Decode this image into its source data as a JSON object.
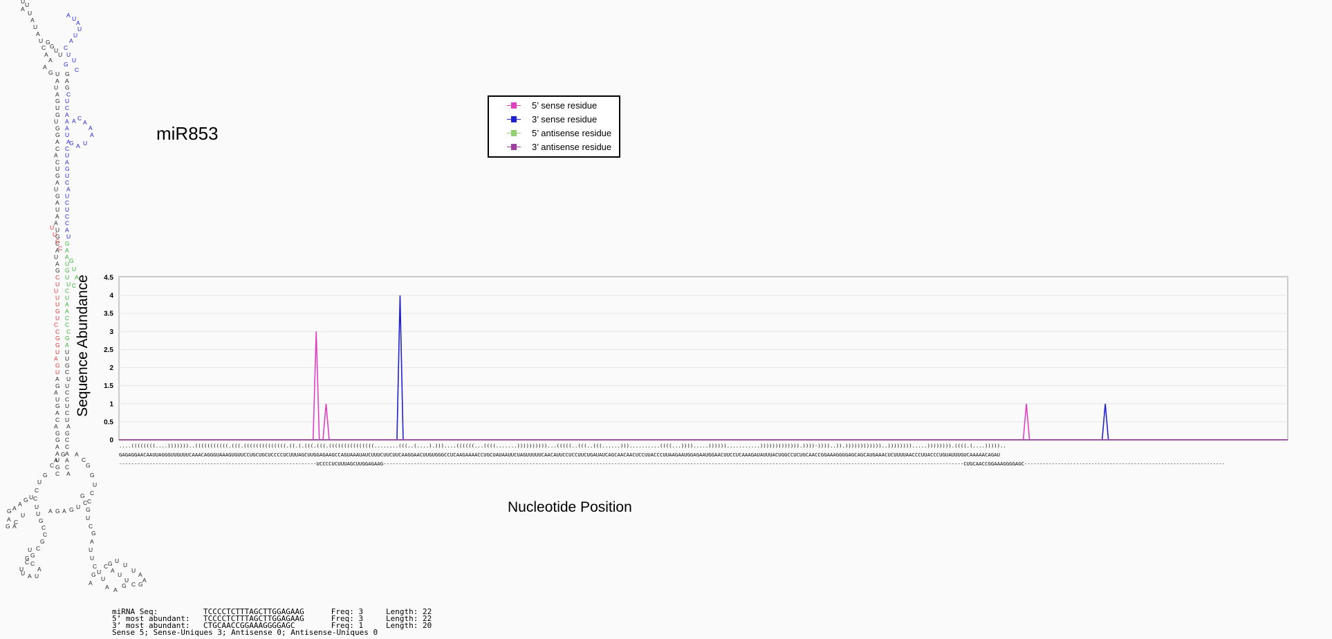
{
  "title": "miR853",
  "colors": {
    "sense5": "#e040c0",
    "sense3": "#2020d0",
    "antisense5": "#90d070",
    "antisense3": "#a040a0",
    "structure_black": "#222222",
    "structure_blue": "#2020d0",
    "structure_green": "#30b030",
    "structure_red": "#e03030"
  },
  "legend": [
    {
      "label": "5’ sense residue",
      "color_key": "sense5"
    },
    {
      "label": "3’ sense residue",
      "color_key": "sense3"
    },
    {
      "label": "5’ antisense residue",
      "color_key": "antisense5"
    },
    {
      "label": "3’ antisense residue",
      "color_key": "antisense3"
    }
  ],
  "chart_data": {
    "type": "line",
    "xlabel": "Nucleotide Position",
    "ylabel": "Sequence Abundance",
    "ylim": [
      0,
      4.5
    ],
    "yticks": [
      "0",
      "0.5",
      "1",
      "1.5",
      "2",
      "2.5",
      "3",
      "3.5",
      "4",
      "4.5"
    ],
    "xlim": [
      1,
      238
    ],
    "series": [
      {
        "name": "5’ sense residue",
        "color_key": "sense5",
        "peaks": [
          {
            "x": 41,
            "y": 3
          },
          {
            "x": 43,
            "y": 1
          },
          {
            "x": 185,
            "y": 1
          }
        ]
      },
      {
        "name": "3’ sense residue",
        "color_key": "sense3",
        "peaks": [
          {
            "x": 58,
            "y": 4
          },
          {
            "x": 201,
            "y": 1
          }
        ]
      },
      {
        "name": "5’ antisense residue",
        "color_key": "antisense5",
        "peaks": []
      },
      {
        "name": "3’ antisense residue",
        "color_key": "antisense3",
        "peaks": []
      }
    ],
    "legend_position": "top-center",
    "grid": true
  },
  "sequence": {
    "dotbracket": "....((((((((....)))))))..(((((((((((.(((.((((((((((((((.((.(.(((.(((.(((((((((((((((........(((..(....).)))....((((((...((((.......))))))))))...(((((..(((..(((......)))..........((((...)))).....))))))...........))))))))))))).))))-))))..)).))))))))))))..)))))))).....)))))))).((((.(....)))))..",
    "sequence": "GAGAGGAACAAUUAGGGUUGUUUCAAACAGGGUAAAGUGUUCCUGCUGCUCCCCUCUUUAGCUUGGAGAAGCCAGUAAAUAUCUUUCUUCUUCAAGGAACUUGUGGGCCUCAAGAAAACCUGCUAUAAUUCUAGUUUUUCAACAUUCCUCCUUCUGAUAUCAGCAACAACUCCUUACCCUUAAGAAUGGAGAAUGGAACUUCCUCAAAGAUAUUUACUGGCCUCUGCAACCGGAAAGGGGAGCAGCAUGAAACUCUUUUAACCCUUACCCUGUAUUUGUCAAAAACAGAU",
    "alignment": "-----------------------------------------------------------------UCCCCUCUUUAGCUUGGAGAAG-----------------------------------------------------------------------------------------------------------------------------------------------------------------------------------------------CUGCAACCGGAAAGGGGAGC------------------------------------------------------------------"
  },
  "stats": [
    {
      "label": "miRNA Seq:",
      "seq": "TCCCCTCTTTAGCTTGGAGAAG",
      "freq": "Freq: 3",
      "len": "Length: 22"
    },
    {
      "label": "5’ most abundant:",
      "seq": "TCCCCTCTTTAGCTTGGAGAAG",
      "freq": "Freq: 3",
      "len": "Length: 22"
    },
    {
      "label": "3’ most abundant:",
      "seq": "CTGCAACCGGAAAGGGGAGC",
      "freq": "Freq: 1",
      "len": "Length: 20"
    },
    {
      "label": "",
      "seq": "Sense 5; Sense-Uniques 3; Antisense 0; Antisense-Uniques 0",
      "freq": "",
      "len": ""
    }
  ]
}
